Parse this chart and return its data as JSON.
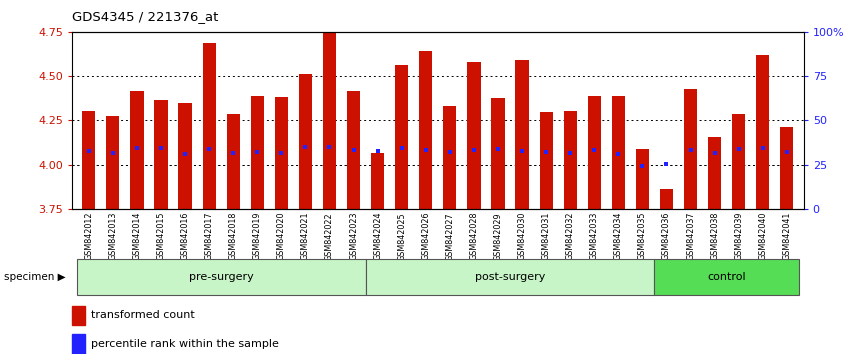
{
  "title": "GDS4345 / 221376_at",
  "samples": [
    "GSM842012",
    "GSM842013",
    "GSM842014",
    "GSM842015",
    "GSM842016",
    "GSM842017",
    "GSM842018",
    "GSM842019",
    "GSM842020",
    "GSM842021",
    "GSM842022",
    "GSM842023",
    "GSM842024",
    "GSM842025",
    "GSM842026",
    "GSM842027",
    "GSM842028",
    "GSM842029",
    "GSM842030",
    "GSM842031",
    "GSM842032",
    "GSM842033",
    "GSM842034",
    "GSM842035",
    "GSM842036",
    "GSM842037",
    "GSM842038",
    "GSM842039",
    "GSM842040",
    "GSM842041"
  ],
  "bar_values": [
    4.305,
    4.275,
    4.415,
    4.365,
    4.35,
    4.685,
    4.285,
    4.385,
    4.38,
    4.51,
    4.745,
    4.415,
    4.065,
    4.565,
    4.64,
    4.33,
    4.58,
    4.375,
    4.59,
    4.295,
    4.305,
    4.385,
    4.385,
    4.09,
    3.865,
    4.43,
    4.155,
    4.285,
    4.62,
    4.215
  ],
  "percentile_values": [
    4.075,
    4.065,
    4.095,
    4.095,
    4.06,
    4.09,
    4.065,
    4.07,
    4.065,
    4.1,
    4.1,
    4.08,
    4.075,
    4.095,
    4.085,
    4.07,
    4.085,
    4.09,
    4.075,
    4.07,
    4.065,
    4.08,
    4.06,
    3.99,
    4.005,
    4.08,
    4.065,
    4.09,
    4.095,
    4.07
  ],
  "groups": [
    {
      "label": "pre-surgery",
      "start": 0,
      "end": 12,
      "color": "#c8f5c8"
    },
    {
      "label": "post-surgery",
      "start": 12,
      "end": 24,
      "color": "#c8f5c8"
    },
    {
      "label": "control",
      "start": 24,
      "end": 30,
      "color": "#55dd55"
    }
  ],
  "bar_bottom": 3.75,
  "ylim_left": [
    3.75,
    4.75
  ],
  "ylim_right": [
    0,
    100
  ],
  "yticks_left": [
    3.75,
    4.0,
    4.25,
    4.5,
    4.75
  ],
  "yticks_right": [
    0,
    25,
    50,
    75,
    100
  ],
  "ytick_labels_right": [
    "0",
    "25",
    "50",
    "75",
    "100%"
  ],
  "grid_values": [
    4.0,
    4.25,
    4.5
  ],
  "bar_color": "#cc1100",
  "percentile_color": "#2222ff",
  "left_tick_color": "#cc1100",
  "right_tick_color": "#2222ff",
  "specimen_label": "specimen",
  "legend_red": "transformed count",
  "legend_blue": "percentile rank within the sample",
  "bg_color": "#f5f5f5",
  "plot_bg": "#ffffff",
  "tick_bg": "#d8d8d8"
}
